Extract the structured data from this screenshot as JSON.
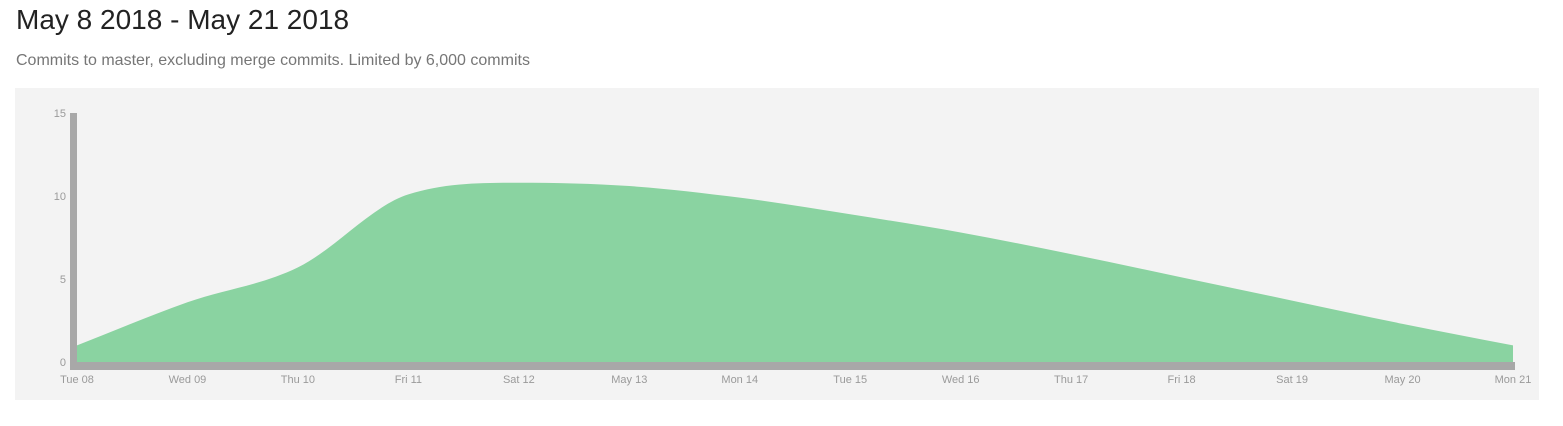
{
  "header": {
    "title": "May 8 2018 - May 21 2018",
    "subtitle": "Commits to master, excluding merge commits. Limited by 6,000 commits"
  },
  "colors": {
    "area_fill": "#8ad3a1",
    "axis": "#a8a8a8",
    "panel_background": "#f3f3f3",
    "tick_text": "#9a9a9a"
  },
  "chart_data": {
    "type": "area",
    "title": "",
    "xlabel": "",
    "ylabel": "",
    "ylim": [
      0,
      15
    ],
    "y_ticks": [
      0,
      5,
      10,
      15
    ],
    "grid": false,
    "categories": [
      "Tue 08",
      "Wed 09",
      "Thu 10",
      "Fri 11",
      "Sat 12",
      "May 13",
      "Mon 14",
      "Tue 15",
      "Wed 16",
      "Thu 17",
      "Fri 18",
      "Sat 19",
      "May 20",
      "Mon 21"
    ],
    "series": [
      {
        "values": [
          1.0,
          3.6,
          5.7,
          10.1,
          10.8,
          10.6,
          9.9,
          8.9,
          7.8,
          6.5,
          5.1,
          3.7,
          2.3,
          1.0
        ]
      }
    ]
  }
}
